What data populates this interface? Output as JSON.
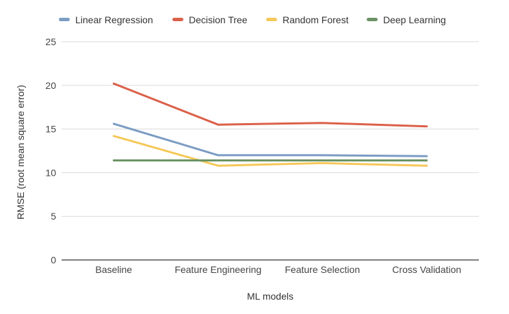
{
  "chart_data": {
    "type": "line",
    "title": "",
    "xlabel": "ML models",
    "ylabel": "RMSE (root mean square error)",
    "categories": [
      "Baseline",
      "Feature Engineering",
      "Feature Selection",
      "Cross Validation"
    ],
    "ylim": [
      0,
      25
    ],
    "yticks": [
      0,
      5,
      10,
      15,
      20,
      25
    ],
    "grid": true,
    "legend_position": "top",
    "series": [
      {
        "name": "Linear Regression",
        "color": "#7b9cc3",
        "values": [
          15.6,
          12.0,
          12.0,
          11.9
        ]
      },
      {
        "name": "Decision Tree",
        "color": "#db6049",
        "values": [
          20.2,
          15.5,
          15.7,
          15.3
        ]
      },
      {
        "name": "Random Forest",
        "color": "#f6c859",
        "values": [
          14.2,
          10.8,
          11.1,
          10.8
        ]
      },
      {
        "name": "Deep Learning",
        "color": "#6b9364",
        "values": [
          11.4,
          11.4,
          11.4,
          11.4
        ]
      }
    ]
  }
}
